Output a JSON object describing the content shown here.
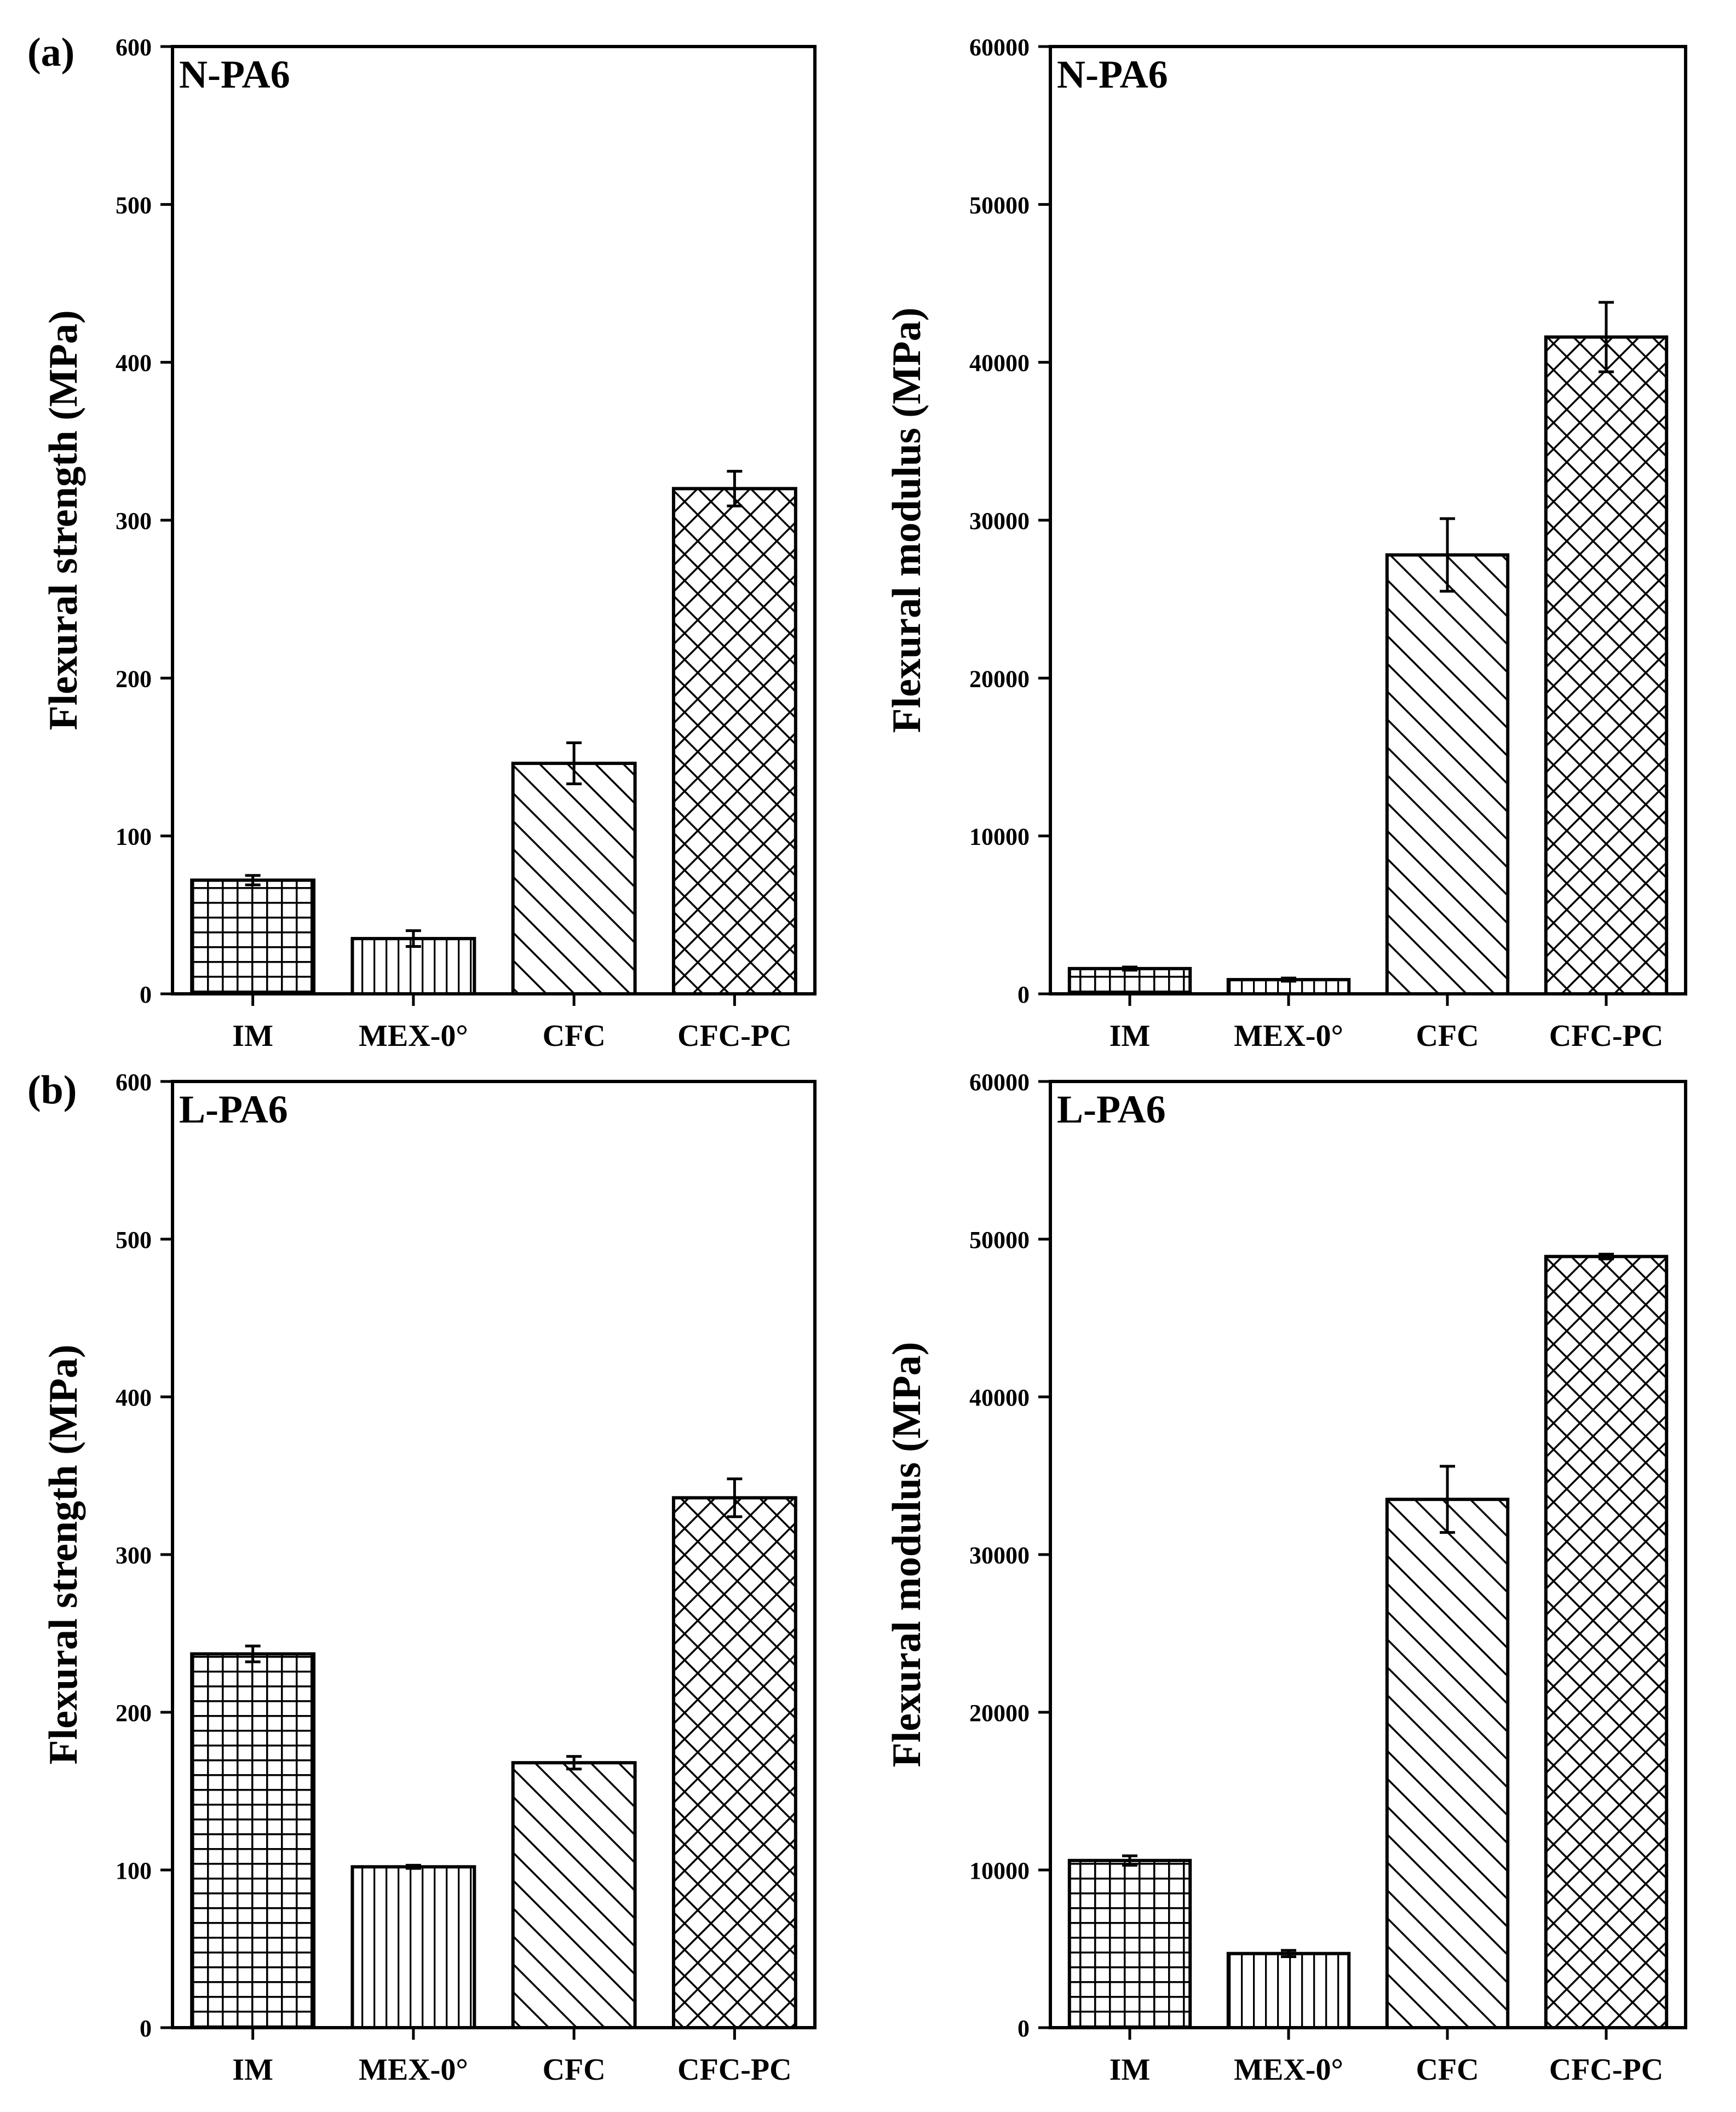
{
  "figure": {
    "panel_labels": [
      "(a)",
      "(b)"
    ]
  },
  "chart_data": [
    {
      "type": "bar",
      "panel": "(a)",
      "title": "N-PA6",
      "categories": [
        "IM",
        "MEX-0°",
        "CFC",
        "CFC-PC"
      ],
      "values": [
        72,
        35,
        146,
        320
      ],
      "errors": [
        3,
        5,
        13,
        11
      ],
      "patterns": [
        "grid",
        "vertical",
        "diagonal",
        "crosshatch"
      ],
      "xlabel": "",
      "ylabel": "Flexural strength (MPa)",
      "ylim": [
        0,
        600
      ],
      "yticks": [
        0,
        100,
        200,
        300,
        400,
        500,
        600
      ],
      "ytick_labels": [
        "0",
        "100",
        "200",
        "300",
        "400",
        "500",
        "600"
      ]
    },
    {
      "type": "bar",
      "panel": "",
      "title": "N-PA6",
      "categories": [
        "IM",
        "MEX-0°",
        "CFC",
        "CFC-PC"
      ],
      "values": [
        1600,
        900,
        27800,
        41600
      ],
      "errors": [
        100,
        100,
        2300,
        2200
      ],
      "patterns": [
        "grid",
        "vertical",
        "diagonal",
        "crosshatch"
      ],
      "xlabel": "",
      "ylabel": "Flexural modulus (MPa)",
      "ylim": [
        0,
        60000
      ],
      "yticks": [
        0,
        10000,
        20000,
        30000,
        40000,
        50000,
        60000
      ],
      "ytick_labels": [
        "0",
        "10000",
        "20000",
        "30000",
        "40000",
        "50000",
        "60000"
      ]
    },
    {
      "type": "bar",
      "panel": "(b)",
      "title": "L-PA6",
      "categories": [
        "IM",
        "MEX-0°",
        "CFC",
        "CFC-PC"
      ],
      "values": [
        237,
        102,
        168,
        336
      ],
      "errors": [
        5,
        1,
        4,
        12
      ],
      "patterns": [
        "grid",
        "vertical",
        "diagonal",
        "crosshatch"
      ],
      "xlabel": "",
      "ylabel": "Flexural strength (MPa)",
      "ylim": [
        0,
        600
      ],
      "yticks": [
        0,
        100,
        200,
        300,
        400,
        500,
        600
      ],
      "ytick_labels": [
        "0",
        "100",
        "200",
        "300",
        "400",
        "500",
        "600"
      ]
    },
    {
      "type": "bar",
      "panel": "",
      "title": "L-PA6",
      "categories": [
        "IM",
        "MEX-0°",
        "CFC",
        "CFC-PC"
      ],
      "values": [
        10600,
        4700,
        33500,
        48900
      ],
      "errors": [
        300,
        200,
        2100,
        150
      ],
      "patterns": [
        "grid",
        "vertical",
        "diagonal",
        "crosshatch"
      ],
      "xlabel": "",
      "ylabel": "Flexural modulus (MPa)",
      "ylim": [
        0,
        60000
      ],
      "yticks": [
        0,
        10000,
        20000,
        30000,
        40000,
        50000,
        60000
      ],
      "ytick_labels": [
        "0",
        "10000",
        "20000",
        "30000",
        "40000",
        "50000",
        "60000"
      ]
    }
  ]
}
